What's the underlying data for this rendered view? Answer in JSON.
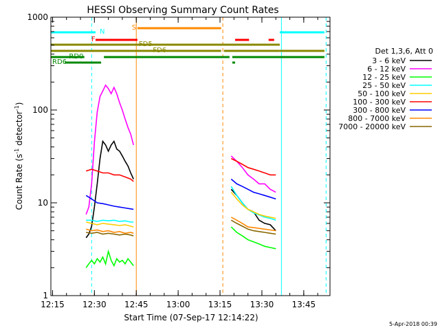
{
  "chart_data": {
    "type": "line",
    "title": "HESSI Observing Summary Count Rates",
    "xlabel": "Start Time (07-Sep-17 12:14:22)",
    "ylabel": "Count Rate (s",
    "ylabel_sup1": "-1",
    "ylabel_mid": " detector",
    "ylabel_sup2": "-1",
    "ylabel_end": ")",
    "y_scale": "log",
    "ylim": [
      1,
      1000
    ],
    "xlim_minutes": [
      0,
      100
    ],
    "x_ticks": [
      {
        "label": "12:15",
        "minute": 0.6
      },
      {
        "label": "12:30",
        "minute": 15.6
      },
      {
        "label": "12:45",
        "minute": 30.6
      },
      {
        "label": "13:00",
        "minute": 45.6
      },
      {
        "label": "13:15",
        "minute": 60.6
      },
      {
        "label": "13:30",
        "minute": 75.6
      },
      {
        "label": "13:45",
        "minute": 90.6
      }
    ],
    "y_ticks": [
      {
        "label": "1",
        "value": 1
      },
      {
        "label": "10",
        "value": 10
      },
      {
        "label": "100",
        "value": 100
      },
      {
        "label": "1000",
        "value": 1000
      }
    ],
    "legend_title": "Det 1,3,6, Att 0",
    "legend_placement": "right",
    "footer_date": "5-Apr-2018 00:39",
    "series": [
      {
        "name": "3 - 6 keV",
        "color": "#000000",
        "seg1": [
          [
            12.6,
            4.2
          ],
          [
            13.6,
            4.6
          ],
          [
            14.6,
            5.6
          ],
          [
            15.6,
            9
          ],
          [
            16.6,
            16
          ],
          [
            17.6,
            30
          ],
          [
            18.6,
            46
          ],
          [
            19.6,
            42
          ],
          [
            20.6,
            36
          ],
          [
            21.6,
            42
          ],
          [
            22.6,
            46
          ],
          [
            23.6,
            38
          ],
          [
            24.6,
            36
          ],
          [
            25.6,
            32
          ],
          [
            26.6,
            28
          ],
          [
            27.6,
            25
          ],
          [
            28.6,
            21
          ],
          [
            29.6,
            18
          ]
        ],
        "seg2": [
          [
            64.6,
            14
          ],
          [
            66.6,
            12
          ],
          [
            68.6,
            10
          ],
          [
            70.6,
            8.5
          ],
          [
            72.6,
            8
          ],
          [
            74.6,
            6.5
          ],
          [
            76.6,
            6
          ],
          [
            78.6,
            5.8
          ],
          [
            80.6,
            5
          ]
        ]
      },
      {
        "name": "6 - 12 keV",
        "color": "#ff00ff",
        "seg1": [
          [
            12.6,
            7.5
          ],
          [
            13.6,
            9
          ],
          [
            14.6,
            16
          ],
          [
            15.6,
            45
          ],
          [
            16.6,
            95
          ],
          [
            17.6,
            140
          ],
          [
            18.6,
            160
          ],
          [
            19.6,
            185
          ],
          [
            20.6,
            170
          ],
          [
            21.6,
            150
          ],
          [
            22.6,
            175
          ],
          [
            23.6,
            150
          ],
          [
            24.6,
            120
          ],
          [
            25.6,
            100
          ],
          [
            26.6,
            80
          ],
          [
            27.6,
            65
          ],
          [
            28.6,
            55
          ],
          [
            29.6,
            42
          ]
        ],
        "seg2": [
          [
            64.6,
            32
          ],
          [
            66.6,
            28
          ],
          [
            68.6,
            24
          ],
          [
            70.6,
            20
          ],
          [
            72.6,
            18
          ],
          [
            74.6,
            16
          ],
          [
            76.6,
            16
          ],
          [
            78.6,
            14
          ],
          [
            80.6,
            13
          ]
        ]
      },
      {
        "name": "12 - 25 keV",
        "color": "#00ff00",
        "seg1": [
          [
            12.6,
            2.0
          ],
          [
            13.6,
            2.2
          ],
          [
            14.6,
            2.4
          ],
          [
            15.6,
            2.2
          ],
          [
            16.6,
            2.5
          ],
          [
            17.6,
            2.3
          ],
          [
            18.6,
            2.6
          ],
          [
            19.6,
            2.2
          ],
          [
            20.6,
            3.0
          ],
          [
            21.6,
            2.4
          ],
          [
            22.6,
            2.1
          ],
          [
            23.6,
            2.5
          ],
          [
            24.6,
            2.3
          ],
          [
            25.6,
            2.4
          ],
          [
            26.6,
            2.2
          ],
          [
            27.6,
            2.5
          ],
          [
            28.6,
            2.3
          ],
          [
            29.6,
            2.1
          ]
        ],
        "seg2": [
          [
            64.6,
            5.5
          ],
          [
            66.6,
            4.8
          ],
          [
            68.6,
            4.4
          ],
          [
            70.6,
            4.0
          ],
          [
            72.6,
            3.8
          ],
          [
            74.6,
            3.6
          ],
          [
            76.6,
            3.4
          ],
          [
            78.6,
            3.3
          ],
          [
            80.6,
            3.2
          ]
        ]
      },
      {
        "name": "25 - 50 keV",
        "color": "#00ffff",
        "seg1": [
          [
            12.6,
            6.5
          ],
          [
            14.6,
            6.5
          ],
          [
            16.6,
            6.3
          ],
          [
            18.6,
            6.5
          ],
          [
            20.6,
            6.4
          ],
          [
            22.6,
            6.5
          ],
          [
            24.6,
            6.3
          ],
          [
            26.6,
            6.4
          ],
          [
            28.6,
            6.2
          ],
          [
            29.6,
            6.2
          ]
        ],
        "seg2": [
          [
            64.6,
            15
          ],
          [
            66.6,
            12
          ],
          [
            68.6,
            10
          ],
          [
            70.6,
            8.5
          ],
          [
            72.6,
            7.8
          ],
          [
            74.6,
            7.4
          ],
          [
            76.6,
            7
          ],
          [
            78.6,
            6.8
          ],
          [
            80.6,
            6.5
          ]
        ]
      },
      {
        "name": "50 - 100 keV",
        "color": "#ffcc00",
        "seg1": [
          [
            12.6,
            6.2
          ],
          [
            14.6,
            6.0
          ],
          [
            16.6,
            5.8
          ],
          [
            18.6,
            6.0
          ],
          [
            20.6,
            5.9
          ],
          [
            22.6,
            5.8
          ],
          [
            24.6,
            5.7
          ],
          [
            26.6,
            5.8
          ],
          [
            28.6,
            5.6
          ],
          [
            29.6,
            5.5
          ]
        ],
        "seg2": [
          [
            64.6,
            13
          ],
          [
            66.6,
            11
          ],
          [
            68.6,
            9.5
          ],
          [
            70.6,
            8.5
          ],
          [
            72.6,
            8
          ],
          [
            74.6,
            7.5
          ],
          [
            76.6,
            7.2
          ],
          [
            78.6,
            7
          ],
          [
            80.6,
            6.8
          ]
        ]
      },
      {
        "name": "100 - 300 keV",
        "color": "#ff0000",
        "seg1": [
          [
            12.6,
            22
          ],
          [
            14.6,
            23
          ],
          [
            16.6,
            22
          ],
          [
            18.6,
            21
          ],
          [
            20.6,
            21
          ],
          [
            22.6,
            20
          ],
          [
            24.6,
            20
          ],
          [
            26.6,
            19
          ],
          [
            28.6,
            18
          ],
          [
            29.6,
            17
          ]
        ],
        "seg2": [
          [
            64.6,
            30
          ],
          [
            66.6,
            28
          ],
          [
            68.6,
            26
          ],
          [
            70.6,
            24
          ],
          [
            72.6,
            23
          ],
          [
            74.6,
            22
          ],
          [
            76.6,
            21
          ],
          [
            78.6,
            20
          ],
          [
            80.6,
            20
          ]
        ]
      },
      {
        "name": "300 - 800 keV",
        "color": "#0000ff",
        "seg1": [
          [
            12.6,
            12
          ],
          [
            14.6,
            11
          ],
          [
            16.6,
            10
          ],
          [
            18.6,
            9.8
          ],
          [
            20.6,
            9.5
          ],
          [
            22.6,
            9.2
          ],
          [
            24.6,
            9
          ],
          [
            26.6,
            8.8
          ],
          [
            28.6,
            8.6
          ],
          [
            29.6,
            8.5
          ]
        ],
        "seg2": [
          [
            64.6,
            18
          ],
          [
            66.6,
            16
          ],
          [
            68.6,
            15
          ],
          [
            70.6,
            14
          ],
          [
            72.6,
            13
          ],
          [
            74.6,
            12.5
          ],
          [
            76.6,
            12
          ],
          [
            78.6,
            11.5
          ],
          [
            80.6,
            11
          ]
        ]
      },
      {
        "name": "800 - 7000 keV",
        "color": "#ff8800",
        "seg1": [
          [
            12.6,
            5.2
          ],
          [
            14.6,
            5.0
          ],
          [
            16.6,
            5.1
          ],
          [
            18.6,
            4.9
          ],
          [
            20.6,
            5.0
          ],
          [
            22.6,
            4.8
          ],
          [
            24.6,
            4.9
          ],
          [
            26.6,
            4.7
          ],
          [
            28.6,
            4.8
          ],
          [
            29.6,
            4.7
          ]
        ],
        "seg2": [
          [
            64.6,
            7
          ],
          [
            66.6,
            6.5
          ],
          [
            68.6,
            6
          ],
          [
            70.6,
            5.5
          ],
          [
            72.6,
            5.4
          ],
          [
            74.6,
            5.3
          ],
          [
            76.6,
            5.2
          ],
          [
            78.6,
            5.1
          ],
          [
            80.6,
            5
          ]
        ]
      },
      {
        "name": "7000 - 20000 keV",
        "color": "#886600",
        "seg1": [
          [
            12.6,
            4.8
          ],
          [
            14.6,
            4.7
          ],
          [
            16.6,
            4.8
          ],
          [
            18.6,
            4.6
          ],
          [
            20.6,
            4.7
          ],
          [
            22.6,
            4.6
          ],
          [
            24.6,
            4.5
          ],
          [
            26.6,
            4.6
          ],
          [
            28.6,
            4.5
          ],
          [
            29.6,
            4.4
          ]
        ],
        "seg2": [
          [
            64.6,
            6.5
          ],
          [
            66.6,
            6
          ],
          [
            68.6,
            5.6
          ],
          [
            70.6,
            5.2
          ],
          [
            72.6,
            5
          ],
          [
            74.6,
            4.9
          ],
          [
            76.6,
            4.8
          ],
          [
            78.6,
            4.7
          ],
          [
            80.6,
            4.6
          ]
        ]
      }
    ],
    "flag_bars": [
      {
        "label": "N",
        "color": "#00ffff",
        "label_minute": 17.5,
        "segments": [
          [
            0,
            16
          ],
          [
            82,
            98
          ]
        ]
      },
      {
        "label": "F",
        "color": "#ff0000",
        "label_minute": 14.5,
        "segments": [
          [
            16,
            31
          ],
          [
            66,
            71
          ],
          [
            78,
            80
          ]
        ]
      },
      {
        "label": "S",
        "color": "#ff8800",
        "label_minute": 29,
        "segments": [
          [
            31,
            61
          ]
        ]
      },
      {
        "label": "FD5",
        "color": "#888800",
        "label_minute": 31.5,
        "segments": [
          [
            0,
            82
          ]
        ]
      },
      {
        "label": "FD6",
        "color": "#888800",
        "label_minute": 36.5,
        "segments": [
          [
            0,
            61
          ],
          [
            62,
            82
          ],
          [
            82,
            98
          ]
        ]
      },
      {
        "label": "RD0",
        "color": "#008800",
        "label_minute": 6.5,
        "segments": [
          [
            0,
            12
          ],
          [
            19,
            64
          ],
          [
            65,
            98
          ]
        ]
      },
      {
        "label": "RD6",
        "color": "#008800",
        "label_minute": 0.5,
        "segments": [
          [
            5,
            18
          ],
          [
            65,
            66
          ]
        ]
      }
    ],
    "vlines": [
      {
        "minute": 14.6,
        "color": "#00ffff",
        "dash": true
      },
      {
        "minute": 30.6,
        "color": "#ff8800",
        "dash": false
      },
      {
        "minute": 61.6,
        "color": "#ff8800",
        "dash": true
      },
      {
        "minute": 82.6,
        "color": "#00ffff",
        "dash": false
      },
      {
        "minute": 98.6,
        "color": "#00ffff",
        "dash": true
      }
    ]
  }
}
